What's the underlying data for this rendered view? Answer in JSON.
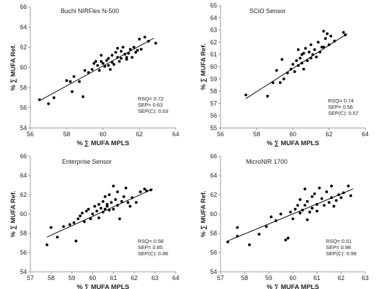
{
  "colors": {
    "marker": "#000000",
    "trendline": "#000000",
    "axis": "#9a9a9a"
  },
  "chart_data": [
    {
      "type": "scatter",
      "title": "Buchi NIRFlex N-500",
      "xlabel": "% ∑ MUFA MPLS",
      "ylabel": "% ∑ MUFA Ref.",
      "xlim": [
        56,
        64
      ],
      "ylim": [
        54,
        66
      ],
      "xticks": [
        "56",
        "58",
        "60",
        "62",
        "64"
      ],
      "yticks": [
        "54",
        "56",
        "58",
        "60",
        "62",
        "64",
        "66"
      ],
      "grid": false,
      "stats": [
        "RSQ= 0.72",
        "SEP= 0.63",
        "SEP(C): 0.63"
      ],
      "trendline": {
        "x": [
          56.5,
          62.8
        ],
        "y": [
          56.7,
          62.9
        ]
      },
      "points": [
        [
          56.5,
          56.8
        ],
        [
          57.0,
          56.4
        ],
        [
          57.3,
          57.0
        ],
        [
          58.0,
          58.7
        ],
        [
          58.2,
          58.6
        ],
        [
          58.3,
          57.6
        ],
        [
          58.4,
          59.1
        ],
        [
          58.7,
          58.6
        ],
        [
          58.9,
          57.1
        ],
        [
          59.0,
          59.7
        ],
        [
          59.2,
          59.5
        ],
        [
          59.4,
          59.8
        ],
        [
          59.5,
          60.4
        ],
        [
          59.6,
          60.6
        ],
        [
          59.7,
          60.2
        ],
        [
          59.8,
          59.7
        ],
        [
          59.9,
          60.6
        ],
        [
          59.9,
          61.2
        ],
        [
          60.0,
          60.4
        ],
        [
          60.1,
          60.1
        ],
        [
          60.2,
          60.7
        ],
        [
          60.3,
          60.9
        ],
        [
          60.3,
          60.2
        ],
        [
          60.4,
          59.8
        ],
        [
          60.5,
          60.5
        ],
        [
          60.5,
          61.2
        ],
        [
          60.6,
          60.3
        ],
        [
          60.7,
          61.5
        ],
        [
          60.8,
          61.0
        ],
        [
          60.8,
          61.9
        ],
        [
          60.9,
          60.6
        ],
        [
          61.0,
          60.9
        ],
        [
          61.0,
          61.6
        ],
        [
          61.1,
          62.0
        ],
        [
          61.2,
          61.3
        ],
        [
          61.3,
          61.0
        ],
        [
          61.3,
          60.8
        ],
        [
          61.4,
          61.4
        ],
        [
          61.5,
          61.8
        ],
        [
          61.6,
          61.0
        ],
        [
          61.7,
          62.0
        ],
        [
          61.8,
          61.5
        ],
        [
          61.9,
          61.7
        ],
        [
          62.0,
          62.8
        ],
        [
          62.1,
          61.8
        ],
        [
          62.3,
          63.0
        ],
        [
          62.5,
          62.6
        ],
        [
          62.9,
          62.4
        ]
      ]
    },
    {
      "type": "scatter",
      "title": "SCiO Sensor",
      "xlabel": "% ∑ MUFA MPLS",
      "ylabel": "% ∑ MUFA Ref.",
      "xlim": [
        56,
        64
      ],
      "ylim": [
        55,
        65
      ],
      "xticks": [
        "56",
        "58",
        "60",
        "62",
        "64"
      ],
      "yticks": [
        "55",
        "56",
        "57",
        "58",
        "59",
        "60",
        "61",
        "62",
        "63",
        "64",
        "65"
      ],
      "grid": false,
      "stats": [
        "RSQ= 0.74",
        "SEP= 0.56",
        "SEP(C): 0.57"
      ],
      "trendline": {
        "x": [
          57.4,
          63.0
        ],
        "y": [
          57.4,
          62.7
        ]
      },
      "points": [
        [
          57.4,
          57.7
        ],
        [
          58.6,
          57.6
        ],
        [
          58.9,
          58.7
        ],
        [
          59.1,
          59.7
        ],
        [
          59.3,
          58.7
        ],
        [
          59.4,
          60.6
        ],
        [
          59.5,
          59.0
        ],
        [
          59.7,
          59.5
        ],
        [
          59.9,
          59.8
        ],
        [
          60.0,
          60.2
        ],
        [
          60.1,
          59.6
        ],
        [
          60.2,
          60.5
        ],
        [
          60.3,
          61.4
        ],
        [
          60.3,
          60.1
        ],
        [
          60.4,
          60.7
        ],
        [
          60.5,
          61.0
        ],
        [
          60.5,
          60.3
        ],
        [
          60.6,
          61.1
        ],
        [
          60.6,
          59.8
        ],
        [
          60.7,
          61.5
        ],
        [
          60.8,
          60.5
        ],
        [
          60.9,
          61.2
        ],
        [
          61.0,
          60.7
        ],
        [
          61.0,
          61.8
        ],
        [
          61.1,
          61.0
        ],
        [
          61.2,
          61.4
        ],
        [
          61.3,
          60.8
        ],
        [
          61.4,
          62.0
        ],
        [
          61.5,
          61.2
        ],
        [
          61.6,
          61.6
        ],
        [
          61.7,
          62.9
        ],
        [
          61.7,
          61.6
        ],
        [
          61.8,
          62.3
        ],
        [
          61.9,
          62.7
        ],
        [
          62.0,
          61.8
        ],
        [
          62.1,
          62.5
        ],
        [
          62.3,
          62.1
        ],
        [
          62.8,
          62.8
        ],
        [
          62.9,
          62.6
        ]
      ]
    },
    {
      "type": "scatter",
      "title": "Enterprise Sensor",
      "xlabel": "% ∑ MUFA MPLS",
      "ylabel": "% ∑ MUFA Ref.",
      "xlim": [
        57,
        64
      ],
      "ylim": [
        54,
        66
      ],
      "xticks": [
        "57",
        "58",
        "59",
        "60",
        "61",
        "62",
        "63",
        "64"
      ],
      "yticks": [
        "54",
        "56",
        "58",
        "60",
        "62",
        "64",
        "66"
      ],
      "grid": false,
      "stats": [
        "RSQ= 0.58",
        "SEP= 0.85",
        "SEP(C): 0.86"
      ],
      "trendline": {
        "x": [
          57.8,
          62.9
        ],
        "y": [
          57.6,
          62.6
        ]
      },
      "points": [
        [
          57.8,
          56.8
        ],
        [
          58.0,
          58.6
        ],
        [
          58.3,
          57.6
        ],
        [
          58.6,
          58.7
        ],
        [
          58.9,
          58.9
        ],
        [
          59.1,
          59.1
        ],
        [
          59.2,
          57.2
        ],
        [
          59.3,
          59.5
        ],
        [
          59.4,
          59.8
        ],
        [
          59.5,
          60.1
        ],
        [
          59.6,
          59.2
        ],
        [
          59.7,
          60.3
        ],
        [
          59.8,
          60.5
        ],
        [
          59.9,
          59.5
        ],
        [
          60.0,
          60.0
        ],
        [
          60.1,
          60.8
        ],
        [
          60.2,
          60.3
        ],
        [
          60.3,
          59.6
        ],
        [
          60.3,
          61.0
        ],
        [
          60.4,
          60.6
        ],
        [
          60.5,
          61.3
        ],
        [
          60.5,
          60.2
        ],
        [
          60.6,
          61.8
        ],
        [
          60.6,
          60.5
        ],
        [
          60.7,
          61.0
        ],
        [
          60.7,
          60.8
        ],
        [
          60.8,
          62.0
        ],
        [
          60.8,
          60.4
        ],
        [
          60.9,
          61.2
        ],
        [
          61.0,
          62.9
        ],
        [
          61.0,
          60.5
        ],
        [
          61.1,
          61.5
        ],
        [
          61.2,
          62.3
        ],
        [
          61.2,
          60.9
        ],
        [
          61.3,
          59.5
        ],
        [
          61.4,
          61.3
        ],
        [
          61.5,
          61.8
        ],
        [
          61.6,
          62.7
        ],
        [
          61.7,
          61.2
        ],
        [
          61.8,
          60.8
        ],
        [
          61.9,
          61.7
        ],
        [
          62.1,
          61.2
        ],
        [
          62.3,
          62.3
        ],
        [
          62.5,
          62.6
        ],
        [
          62.6,
          62.4
        ],
        [
          62.8,
          62.5
        ]
      ]
    },
    {
      "type": "scatter",
      "title": "MicroNIR 1700",
      "xlabel": "% ∑ MUFA MPLS",
      "ylabel": "% ∑ MUFA Ref.",
      "xlim": [
        57,
        63
      ],
      "ylim": [
        54,
        66
      ],
      "xticks": [
        "57",
        "58",
        "59",
        "60",
        "61",
        "62",
        "63"
      ],
      "yticks": [
        "54",
        "56",
        "58",
        "60",
        "62",
        "64",
        "66"
      ],
      "grid": false,
      "stats": [
        "RSQ= 0.51",
        "SEP= 0.98",
        "SEP(C): 0.99"
      ],
      "trendline": {
        "x": [
          57.3,
          62.5
        ],
        "y": [
          57.2,
          62.6
        ]
      },
      "points": [
        [
          57.3,
          57.1
        ],
        [
          57.7,
          58.6
        ],
        [
          57.7,
          57.7
        ],
        [
          58.2,
          56.8
        ],
        [
          58.6,
          57.9
        ],
        [
          58.9,
          58.7
        ],
        [
          59.1,
          59.7
        ],
        [
          59.3,
          59.3
        ],
        [
          59.5,
          60.0
        ],
        [
          59.7,
          57.3
        ],
        [
          59.8,
          57.5
        ],
        [
          59.9,
          60.2
        ],
        [
          60.0,
          59.5
        ],
        [
          60.1,
          60.5
        ],
        [
          60.2,
          60.9
        ],
        [
          60.3,
          60.1
        ],
        [
          60.3,
          61.5
        ],
        [
          60.4,
          60.4
        ],
        [
          60.5,
          62.6
        ],
        [
          60.5,
          60.9
        ],
        [
          60.6,
          59.4
        ],
        [
          60.6,
          61.3
        ],
        [
          60.7,
          60.2
        ],
        [
          60.8,
          61.8
        ],
        [
          60.8,
          60.6
        ],
        [
          60.9,
          62.1
        ],
        [
          61.0,
          61.0
        ],
        [
          61.0,
          60.3
        ],
        [
          61.1,
          62.7
        ],
        [
          61.2,
          61.6
        ],
        [
          61.3,
          60.9
        ],
        [
          61.4,
          62.3
        ],
        [
          61.5,
          61.2
        ],
        [
          61.6,
          61.7
        ],
        [
          61.6,
          62.9
        ],
        [
          61.7,
          60.8
        ],
        [
          61.8,
          61.4
        ],
        [
          61.9,
          62.0
        ],
        [
          62.0,
          61.7
        ],
        [
          62.1,
          62.2
        ],
        [
          62.3,
          62.9
        ],
        [
          62.4,
          61.9
        ]
      ]
    }
  ]
}
